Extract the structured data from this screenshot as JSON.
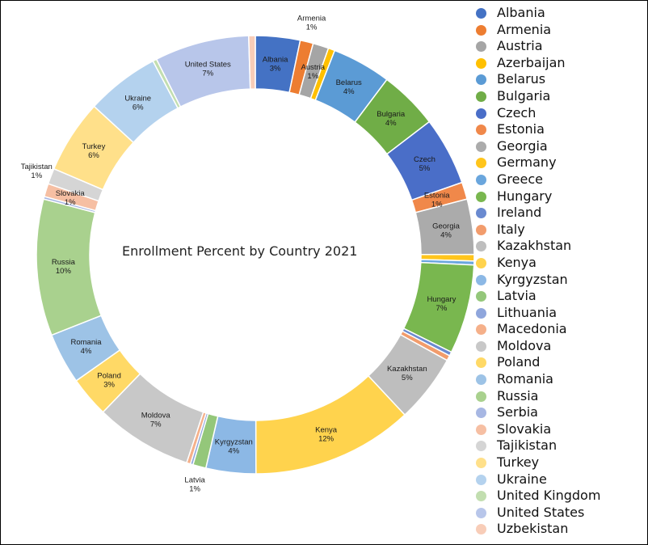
{
  "chart_data": {
    "type": "doughnut",
    "title": "Enrollment Percent by Country 2021",
    "legend_position": "right",
    "categories": [
      "Albania",
      "Armenia",
      "Austria",
      "Azerbaijan",
      "Belarus",
      "Bulgaria",
      "Czech",
      "Estonia",
      "Georgia",
      "Germany",
      "Greece",
      "Hungary",
      "Ireland",
      "Italy",
      "Kazakhstan",
      "Kenya",
      "Kyrgyzstan",
      "Latvia",
      "Lithuania",
      "Macedonia",
      "Moldova",
      "Poland",
      "Romania",
      "Russia",
      "Serbia",
      "Slovakia",
      "Tajikistan",
      "Turkey",
      "Ukraine",
      "United Kingdom",
      "United States",
      "Uzbekistan"
    ],
    "values": [
      3.4,
      1.0,
      1.2,
      0.5,
      4.5,
      4.5,
      5.2,
      1.3,
      4.2,
      0.5,
      0.3,
      6.8,
      0.3,
      0.4,
      5.2,
      12.3,
      3.8,
      1.0,
      0.2,
      0.3,
      7.4,
      3.1,
      3.9,
      10.4,
      0.2,
      1.0,
      1.2,
      5.6,
      5.6,
      0.3,
      7.2,
      0.5
    ],
    "data_labels": [
      {
        "category": "Albania",
        "name": "Albania",
        "pct": "3%"
      },
      {
        "category": "Armenia",
        "name": "Armenia",
        "pct": "1%"
      },
      {
        "category": "Austria",
        "name": "Austria",
        "pct": "1%"
      },
      {
        "category": "Belarus",
        "name": "Belarus",
        "pct": "4%"
      },
      {
        "category": "Bulgaria",
        "name": "Bulgaria",
        "pct": "4%"
      },
      {
        "category": "Czech",
        "name": "Czech",
        "pct": "5%"
      },
      {
        "category": "Estonia",
        "name": "Estonia",
        "pct": "1%"
      },
      {
        "category": "Georgia",
        "name": "Georgia",
        "pct": "4%"
      },
      {
        "category": "Hungary",
        "name": "Hungary",
        "pct": "7%"
      },
      {
        "category": "Kazakhstan",
        "name": "Kazakhstan",
        "pct": "5%"
      },
      {
        "category": "Kenya",
        "name": "Kenya",
        "pct": "12%"
      },
      {
        "category": "Kyrgyzstan",
        "name": "Kyrgyzstan",
        "pct": "4%"
      },
      {
        "category": "Latvia",
        "name": "Latvia",
        "pct": "1%"
      },
      {
        "category": "Moldova",
        "name": "Moldova",
        "pct": "7%"
      },
      {
        "category": "Poland",
        "name": "Poland",
        "pct": "3%"
      },
      {
        "category": "Romania",
        "name": "Romania",
        "pct": "4%"
      },
      {
        "category": "Russia",
        "name": "Russia",
        "pct": "10%"
      },
      {
        "category": "Slovakia",
        "name": "Slovakia",
        "pct": "1%"
      },
      {
        "category": "Tajikistan",
        "name": "Tajikistan",
        "pct": "1%"
      },
      {
        "category": "Turkey",
        "name": "Turkey",
        "pct": "6%"
      },
      {
        "category": "Ukraine",
        "name": "Ukraine",
        "pct": "6%"
      },
      {
        "category": "United States",
        "name": "United States",
        "pct": "7%"
      }
    ],
    "colors": [
      "#4472C4",
      "#ED7D31",
      "#A5A5A5",
      "#FFC000",
      "#5B9BD5",
      "#70AD47",
      "#4A6EC8",
      "#F0884A",
      "#ABABAB",
      "#FFC51C",
      "#6AA6DD",
      "#79B74F",
      "#6A8AD0",
      "#F29C6C",
      "#BEBEBE",
      "#FFD34D",
      "#8CB8E5",
      "#94C77A",
      "#8FA6DC",
      "#F5B08A",
      "#C8C8C8",
      "#FFD966",
      "#9DC3E6",
      "#A9D18E",
      "#A7B7E3",
      "#F6BFA3",
      "#D5D5D5",
      "#FFE08A",
      "#B4D2EE",
      "#C2DEB0",
      "#B8C6EA",
      "#F8CDB8"
    ]
  }
}
